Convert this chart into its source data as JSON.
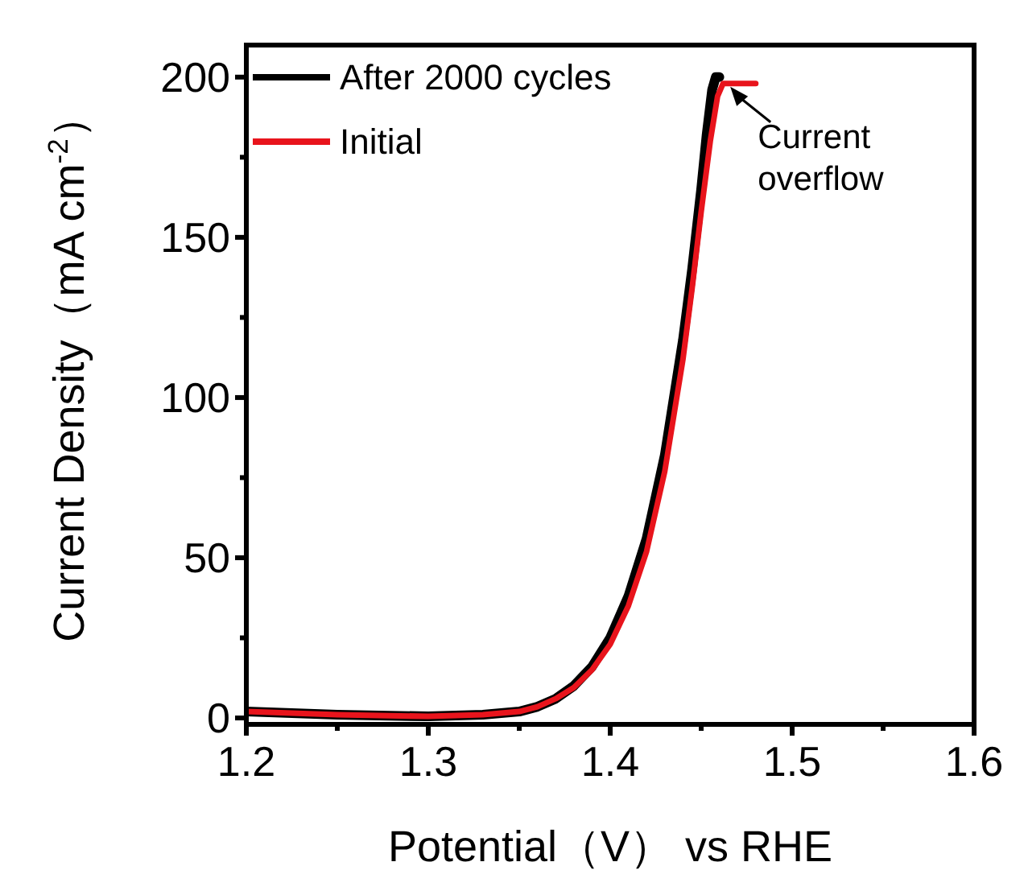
{
  "chart_data": {
    "type": "line",
    "xlabel": "Potential（V） vs RHE",
    "ylabel": "Current Density（mA cm$^{-2}$）",
    "xlim": [
      1.2,
      1.6
    ],
    "xticks": [
      1.2,
      1.3,
      1.4,
      1.5,
      1.6
    ],
    "ylim": [
      -2,
      210
    ],
    "yticks": [
      0,
      50,
      100,
      150,
      200
    ],
    "legend": "top left",
    "annotations": [
      {
        "text": "Current overflow",
        "x": 1.466,
        "y": 198
      }
    ],
    "series": [
      {
        "name": "After 2000 cycles",
        "color": "#000000",
        "x": [
          1.2,
          1.25,
          1.3,
          1.33,
          1.35,
          1.36,
          1.37,
          1.38,
          1.39,
          1.4,
          1.41,
          1.42,
          1.43,
          1.44,
          1.445,
          1.45,
          1.453,
          1.456,
          1.458,
          1.46
        ],
        "values": [
          2,
          1,
          0.5,
          1,
          2,
          3.5,
          6,
          10,
          16,
          25,
          38,
          56,
          82,
          118,
          140,
          165,
          182,
          196,
          200,
          200
        ]
      },
      {
        "name": "Initial",
        "color": "#e8141c",
        "x": [
          1.2,
          1.25,
          1.3,
          1.33,
          1.35,
          1.36,
          1.37,
          1.38,
          1.39,
          1.4,
          1.41,
          1.42,
          1.43,
          1.44,
          1.445,
          1.45,
          1.455,
          1.459,
          1.462,
          1.47,
          1.48
        ],
        "values": [
          2,
          1,
          0.5,
          1,
          2,
          3.5,
          6,
          9.5,
          15,
          23,
          35,
          52,
          77,
          112,
          134,
          158,
          180,
          194,
          198,
          198,
          198
        ]
      }
    ]
  }
}
